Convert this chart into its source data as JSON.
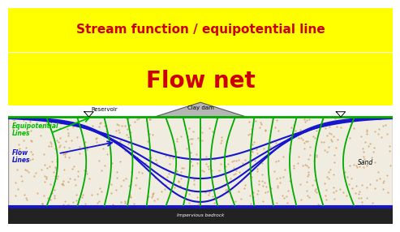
{
  "title1": "Stream function / equipotential line",
  "title2": "Flow net",
  "title1_color": "#cc0000",
  "title2_color": "#cc0000",
  "title1_bg": "#ffff00",
  "title2_bg": "#ffff00",
  "bg_color": "#ffffff",
  "flow_line_color": "#1515cc",
  "equip_line_color": "#00aa00",
  "label_equip_color": "#00bb00",
  "label_flow_color": "#1515cc",
  "reservoir_label": "Reservoir",
  "clay_dam_label": "Clay dam",
  "sand_label": "Sand",
  "bedrock_label": "Impervious bedrock",
  "equip_label1": "Equipotential",
  "equip_label2": "Lines",
  "flow_label1": "Flow",
  "flow_label2": "Lines",
  "soil_color": "#f0ede0",
  "soil_dot_color": "#cc8844",
  "bedrock_dark": "#222222",
  "dam_color": "#aaaaaa"
}
